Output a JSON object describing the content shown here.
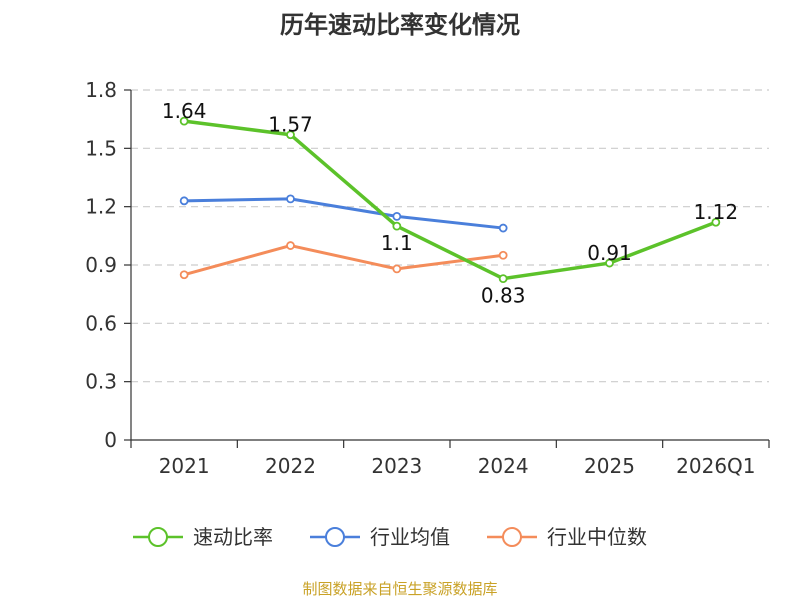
{
  "chart_data": {
    "type": "line",
    "title": "历年速动比率变化情况",
    "categories": [
      "2021",
      "2022",
      "2023",
      "2024",
      "2025",
      "2026Q1"
    ],
    "ylim": [
      0,
      1.8
    ],
    "yticks": [
      "0",
      "0.3",
      "0.6",
      "0.9",
      "1.2",
      "1.5",
      "1.8"
    ],
    "grid": true,
    "legend_position": "bottom",
    "series": [
      {
        "name": "速动比率",
        "color": "#5cc22a",
        "values": [
          1.64,
          1.57,
          1.1,
          0.83,
          0.91,
          1.12
        ],
        "labels": [
          "1.64",
          "1.57",
          "1.1",
          "0.83",
          "0.91",
          "1.12"
        ]
      },
      {
        "name": "行业均值",
        "color": "#4a7fdb",
        "values": [
          1.23,
          1.24,
          1.15,
          1.09,
          null,
          null
        ]
      },
      {
        "name": "行业中位数",
        "color": "#f48c5a",
        "values": [
          0.85,
          1.0,
          0.88,
          0.95,
          null,
          null
        ]
      }
    ],
    "source": "制图数据来自恒生聚源数据库"
  }
}
